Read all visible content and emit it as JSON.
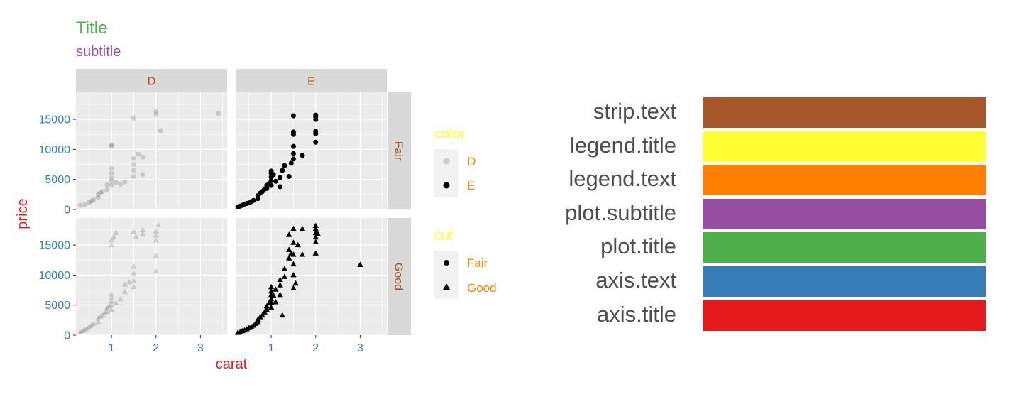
{
  "plot": {
    "title": "Title",
    "subtitle": "subtitle"
  },
  "colors": {
    "strip_text": "#A65628",
    "legend_title": "#FFFF33",
    "legend_text": "#FF7F00",
    "plot_subtitle": "#984EA3",
    "plot_title": "#4DAF4A",
    "axis_text": "#377EB8",
    "axis_title": "#E41A1C",
    "panel_background": "#EBEBEB",
    "strip_background": "#D9D9D9",
    "gridline": "#FFFFFF"
  },
  "legend": {
    "color": {
      "title": "color",
      "items": [
        {
          "label": "D",
          "opacity": 0.15
        },
        {
          "label": "E",
          "opacity": 1
        }
      ]
    },
    "cut": {
      "title": "cut",
      "items": [
        {
          "label": "Fair",
          "shape": "circle"
        },
        {
          "label": "Good",
          "shape": "triangle"
        }
      ]
    }
  },
  "swatch_legend": [
    {
      "label": "strip.text",
      "color": "#A65628"
    },
    {
      "label": "legend.title",
      "color": "#FFFF33"
    },
    {
      "label": "legend.text",
      "color": "#FF7F00"
    },
    {
      "label": "plot.subtitle",
      "color": "#984EA3"
    },
    {
      "label": "plot.title",
      "color": "#4DAF4A"
    },
    {
      "label": "axis.text",
      "color": "#377EB8"
    },
    {
      "label": "axis.title",
      "color": "#E41A1C"
    }
  ],
  "chart_data": {
    "type": "scatter",
    "xlabel": "carat",
    "ylabel": "price",
    "xlim": [
      0.2,
      3.6
    ],
    "ylim": [
      0,
      19500
    ],
    "x_ticks": [
      1,
      2,
      3
    ],
    "x_tick_labels": [
      "1",
      "2",
      "3"
    ],
    "y_ticks": [
      0,
      5000,
      10000,
      15000
    ],
    "y_tick_labels": [
      "0",
      "5000",
      "10000",
      "15000"
    ],
    "facet_cols": [
      "D",
      "E"
    ],
    "facet_rows": [
      "Fair",
      "Good"
    ],
    "grid": true,
    "legend_position": "right",
    "panels": [
      {
        "col": "D",
        "row": "Fair",
        "shape": "circle",
        "opacity": 0.15,
        "points": [
          [
            0.3,
            700
          ],
          [
            0.4,
            850
          ],
          [
            0.5,
            1200
          ],
          [
            0.55,
            1400
          ],
          [
            0.6,
            1600
          ],
          [
            0.7,
            2000
          ],
          [
            0.7,
            2500
          ],
          [
            0.75,
            2800
          ],
          [
            0.8,
            3000
          ],
          [
            0.9,
            3300
          ],
          [
            0.9,
            4100
          ],
          [
            1.0,
            4000
          ],
          [
            1.0,
            4700
          ],
          [
            1.0,
            5200
          ],
          [
            1.0,
            6000
          ],
          [
            1.0,
            6800
          ],
          [
            1.0,
            10500
          ],
          [
            1.0,
            10800
          ],
          [
            1.1,
            4500
          ],
          [
            1.2,
            4200
          ],
          [
            1.3,
            4600
          ],
          [
            1.5,
            5500
          ],
          [
            1.5,
            6500
          ],
          [
            1.5,
            7500
          ],
          [
            1.5,
            8500
          ],
          [
            1.5,
            15200
          ],
          [
            1.6,
            9200
          ],
          [
            1.7,
            8700
          ],
          [
            1.7,
            5800
          ],
          [
            2.0,
            15800
          ],
          [
            2.0,
            16300
          ],
          [
            2.1,
            13100
          ],
          [
            3.4,
            16000
          ]
        ]
      },
      {
        "col": "E",
        "row": "Fair",
        "shape": "circle",
        "opacity": 1,
        "points": [
          [
            0.25,
            400
          ],
          [
            0.3,
            550
          ],
          [
            0.35,
            700
          ],
          [
            0.4,
            900
          ],
          [
            0.45,
            1000
          ],
          [
            0.5,
            1100
          ],
          [
            0.55,
            1300
          ],
          [
            0.6,
            1500
          ],
          [
            0.7,
            1800
          ],
          [
            0.7,
            2300
          ],
          [
            0.75,
            2700
          ],
          [
            0.8,
            3000
          ],
          [
            0.85,
            3400
          ],
          [
            0.9,
            3500
          ],
          [
            0.9,
            4000
          ],
          [
            0.95,
            4300
          ],
          [
            1.0,
            4000
          ],
          [
            1.0,
            4800
          ],
          [
            1.0,
            5400
          ],
          [
            1.0,
            6000
          ],
          [
            1.0,
            6400
          ],
          [
            1.05,
            5800
          ],
          [
            1.1,
            4700
          ],
          [
            1.2,
            3800
          ],
          [
            1.2,
            5300
          ],
          [
            1.25,
            6500
          ],
          [
            1.3,
            7300
          ],
          [
            1.4,
            5500
          ],
          [
            1.45,
            7700
          ],
          [
            1.5,
            8400
          ],
          [
            1.5,
            9300
          ],
          [
            1.5,
            10500
          ],
          [
            1.5,
            12500
          ],
          [
            1.5,
            12900
          ],
          [
            1.5,
            15600
          ],
          [
            1.7,
            9000
          ],
          [
            2.0,
            11200
          ],
          [
            2.0,
            12600
          ],
          [
            2.0,
            13000
          ],
          [
            2.0,
            15000
          ],
          [
            2.0,
            15400
          ],
          [
            2.0,
            15700
          ]
        ]
      },
      {
        "col": "D",
        "row": "Good",
        "shape": "triangle",
        "opacity": 0.15,
        "points": [
          [
            0.3,
            500
          ],
          [
            0.35,
            700
          ],
          [
            0.4,
            900
          ],
          [
            0.45,
            1100
          ],
          [
            0.5,
            1400
          ],
          [
            0.55,
            1600
          ],
          [
            0.6,
            1900
          ],
          [
            0.7,
            2200
          ],
          [
            0.7,
            2800
          ],
          [
            0.75,
            3100
          ],
          [
            0.8,
            3300
          ],
          [
            0.85,
            3700
          ],
          [
            0.9,
            3900
          ],
          [
            0.9,
            4500
          ],
          [
            0.95,
            4800
          ],
          [
            1.0,
            4200
          ],
          [
            1.0,
            5000
          ],
          [
            1.0,
            5600
          ],
          [
            1.0,
            6200
          ],
          [
            1.0,
            6800
          ],
          [
            1.0,
            15000
          ],
          [
            1.0,
            15800
          ],
          [
            1.05,
            16300
          ],
          [
            1.1,
            5300
          ],
          [
            1.1,
            17000
          ],
          [
            1.2,
            6000
          ],
          [
            1.3,
            7200
          ],
          [
            1.3,
            8400
          ],
          [
            1.4,
            8800
          ],
          [
            1.5,
            8000
          ],
          [
            1.5,
            9000
          ],
          [
            1.5,
            10300
          ],
          [
            1.5,
            11400
          ],
          [
            1.5,
            17200
          ],
          [
            1.55,
            16400
          ],
          [
            1.7,
            16800
          ],
          [
            1.7,
            17500
          ],
          [
            2.0,
            10600
          ],
          [
            2.0,
            13200
          ],
          [
            2.0,
            15800
          ],
          [
            2.0,
            16600
          ],
          [
            2.0,
            17300
          ],
          [
            2.05,
            18300
          ]
        ]
      },
      {
        "col": "E",
        "row": "Good",
        "shape": "triangle",
        "opacity": 1,
        "points": [
          [
            0.25,
            400
          ],
          [
            0.3,
            500
          ],
          [
            0.35,
            700
          ],
          [
            0.4,
            800
          ],
          [
            0.45,
            1000
          ],
          [
            0.5,
            1200
          ],
          [
            0.55,
            1400
          ],
          [
            0.6,
            1600
          ],
          [
            0.65,
            1900
          ],
          [
            0.7,
            2200
          ],
          [
            0.7,
            2600
          ],
          [
            0.75,
            3000
          ],
          [
            0.8,
            3300
          ],
          [
            0.85,
            3800
          ],
          [
            0.9,
            4200
          ],
          [
            0.9,
            4800
          ],
          [
            0.95,
            5300
          ],
          [
            1.0,
            4600
          ],
          [
            1.0,
            5400
          ],
          [
            1.0,
            6000
          ],
          [
            1.0,
            6700
          ],
          [
            1.0,
            7300
          ],
          [
            1.0,
            8000
          ],
          [
            1.05,
            6600
          ],
          [
            1.1,
            5500
          ],
          [
            1.1,
            7600
          ],
          [
            1.2,
            6700
          ],
          [
            1.2,
            8300
          ],
          [
            1.2,
            9200
          ],
          [
            1.25,
            3300
          ],
          [
            1.3,
            9700
          ],
          [
            1.3,
            11000
          ],
          [
            1.4,
            12800
          ],
          [
            1.4,
            14200
          ],
          [
            1.4,
            16700
          ],
          [
            1.45,
            13600
          ],
          [
            1.5,
            7800
          ],
          [
            1.5,
            10000
          ],
          [
            1.5,
            11800
          ],
          [
            1.5,
            13400
          ],
          [
            1.5,
            15400
          ],
          [
            1.5,
            17700
          ],
          [
            1.55,
            8600
          ],
          [
            1.6,
            15000
          ],
          [
            1.7,
            13400
          ],
          [
            1.7,
            17700
          ],
          [
            2.0,
            13600
          ],
          [
            2.0,
            15500
          ],
          [
            2.0,
            16300
          ],
          [
            2.0,
            17000
          ],
          [
            2.0,
            17700
          ],
          [
            2.0,
            18200
          ],
          [
            2.05,
            16800
          ],
          [
            3.0,
            11700
          ]
        ]
      }
    ]
  }
}
